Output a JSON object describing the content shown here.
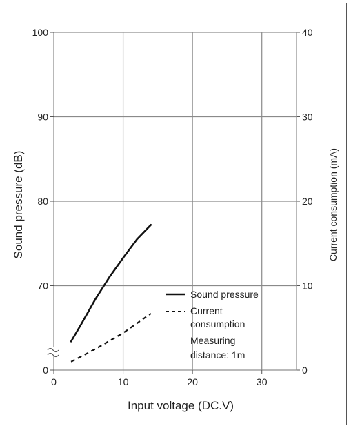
{
  "chart_data": {
    "type": "line",
    "xlabel": "Input voltage (DC.V)",
    "ylabel_left": "Sound pressure (dB)",
    "ylabel_right": "Current consumption (mA)",
    "x_ticks": [
      "0",
      "10",
      "20",
      "30"
    ],
    "y_left_ticks": [
      "0",
      "70",
      "80",
      "90",
      "100"
    ],
    "y_right_ticks": [
      "0",
      "10",
      "20",
      "30",
      "40"
    ],
    "xlim": [
      0,
      35
    ],
    "ylim_left": [
      60,
      100
    ],
    "ylim_right": [
      0,
      40
    ],
    "y_left_axis_break": true,
    "grid": true,
    "series": [
      {
        "name": "Sound pressure",
        "axis": "left",
        "style": "solid",
        "x": [
          2.5,
          4,
          6,
          8,
          10,
          12,
          14
        ],
        "y": [
          63.4,
          65.5,
          68.4,
          71.0,
          73.3,
          75.5,
          77.2
        ]
      },
      {
        "name": "Current consumption",
        "axis": "right",
        "style": "dashed",
        "x": [
          2.5,
          6,
          10,
          14
        ],
        "y": [
          1.0,
          2.5,
          4.4,
          6.7
        ]
      }
    ],
    "legend": {
      "position": "inside-bottom-right",
      "entries": [
        "Sound pressure",
        "Current",
        "consumption"
      ],
      "note_lines": [
        "Measuring",
        "distance: 1m"
      ]
    }
  }
}
